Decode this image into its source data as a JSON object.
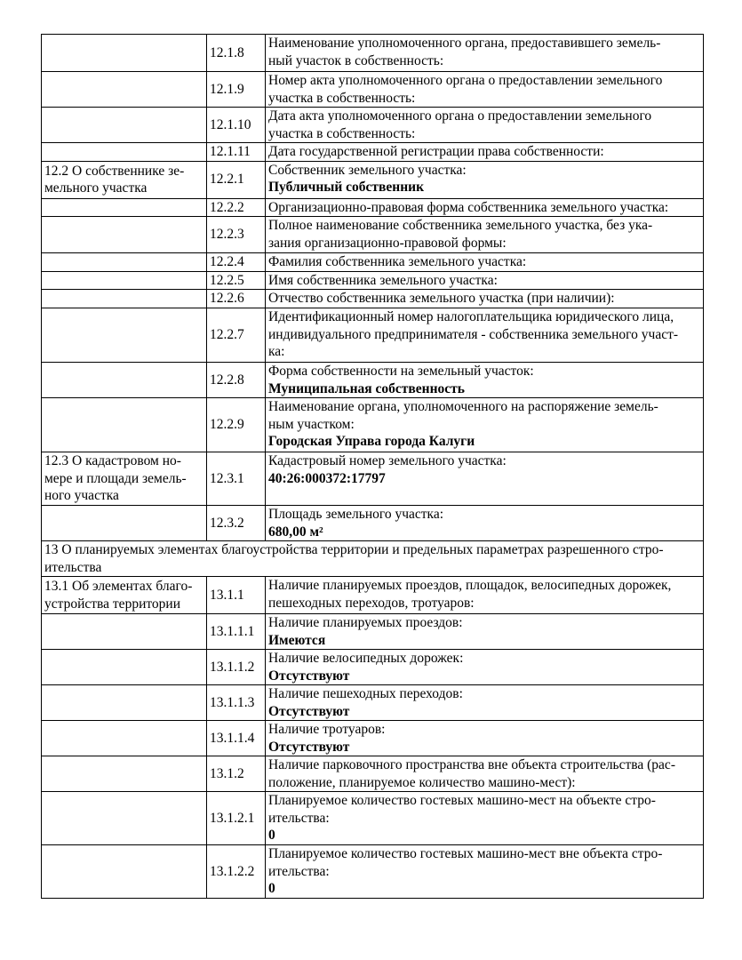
{
  "rows": [
    {
      "section": "",
      "num": "12.1.8",
      "label": "Наименование уполномоченного органа, предоставившего земель-\nный участок в собственность:",
      "value": "",
      "h": 42
    },
    {
      "section": "",
      "num": "12.1.9",
      "label": "Номер акта уполномоченного органа о предоставлении земельного\nучастка в собственность:",
      "value": "",
      "h": 40
    },
    {
      "section": "",
      "num": "12.1.10",
      "label": "Дата акта уполномоченного органа о предоставлении земельного\nучастка в собственность:",
      "value": "",
      "h": 40
    },
    {
      "section": "",
      "num": "12.1.11",
      "label": "Дата государственной регистрации права собственности:",
      "value": "",
      "h": 20
    },
    {
      "section": "12.2 О собственнике зе-\nмельного участка",
      "num": "12.2.1",
      "label": "Собственник земельного участка:",
      "value": "Публичный собственник",
      "h": 42
    },
    {
      "section": "",
      "num": "12.2.2",
      "label": "Организационно-правовая форма собственника земельного участка:",
      "value": "",
      "h": 20
    },
    {
      "section": "",
      "num": "12.2.3",
      "label": "Полное наименование собственника земельного участка, без ука-\nзания организационно-правовой формы:",
      "value": "",
      "h": 41
    },
    {
      "section": "",
      "num": "12.2.4",
      "label": "Фамилия собственника земельного участка:",
      "value": "",
      "h": 20
    },
    {
      "section": "",
      "num": "12.2.5",
      "label": "Имя собственника земельного участка:",
      "value": "",
      "h": 20
    },
    {
      "section": "",
      "num": "12.2.6",
      "label": "Отчество собственника земельного участка (при наличии):",
      "value": "",
      "h": 21
    },
    {
      "section": "",
      "num": "12.2.7",
      "label": "Идентификационный номер налогоплательщика юридического лица,\nиндивидуального предпринимателя - собственника земельного участ-\nка:",
      "value": "",
      "h": 61
    },
    {
      "section": "",
      "num": "12.2.8",
      "label": "Форма собственности на земельный участок:",
      "value": "Муниципальная собственность",
      "h": 39
    },
    {
      "section": "",
      "num": "12.2.9",
      "label": "Наименование органа, уполномоченного на распоряжение земель-\nным участком:",
      "value": "Городская Управа города Калуги",
      "h": 61
    },
    {
      "section": "12.3 О кадастровом но-\nмере и площади земель-\nного участка",
      "num": "12.3.1",
      "label": "Кадастровый номер земельного участка:",
      "value": "40:26:000372:17797",
      "h": 60
    },
    {
      "section": "",
      "num": "12.3.2",
      "label": "Площадь земельного участка:",
      "value": "680,00 м²",
      "h": 37
    },
    {
      "full": "13 О планируемых элементах благоустройства территории и предельных параметрах разрешенного стро-\nительства",
      "h": 40
    },
    {
      "section": "13.1 Об элементах благо-\nустройства территории",
      "num": "13.1.1",
      "label": "Наличие планируемых проездов, площадок, велосипедных дорожек,\nпешеходных переходов, тротуаров:",
      "value": "",
      "h": 42
    },
    {
      "section": "",
      "num": "13.1.1.1",
      "label": "Наличие планируемых проездов:",
      "value": "Имеются",
      "h": 36
    },
    {
      "section": "",
      "num": "13.1.1.2",
      "label": "Наличие велосипедных дорожек:",
      "value": "Отсутствуют",
      "h": 40
    },
    {
      "section": "",
      "num": "13.1.1.3",
      "label": "Наличие пешеходных переходов:",
      "value": "Отсутствуют",
      "h": 40
    },
    {
      "section": "",
      "num": "13.1.1.4",
      "label": "Наличие тротуаров:",
      "value": "Отсутствуют",
      "h": 40
    },
    {
      "section": "",
      "num": "13.1.2",
      "label": "Наличие парковочного пространства вне объекта строительства (рас-\nположение, планируемое количество машино-мест):",
      "value": "",
      "h": 40
    },
    {
      "section": "",
      "num": "13.1.2.1",
      "label": "Планируемое количество гостевых машино-мест на объекте стро-\nительства:",
      "value": "0",
      "h": 60
    },
    {
      "section": "",
      "num": "13.1.2.2",
      "label": "Планируемое количество гостевых машино-мест вне объекта стро-\nительства:",
      "value": "0",
      "h": 57
    }
  ]
}
